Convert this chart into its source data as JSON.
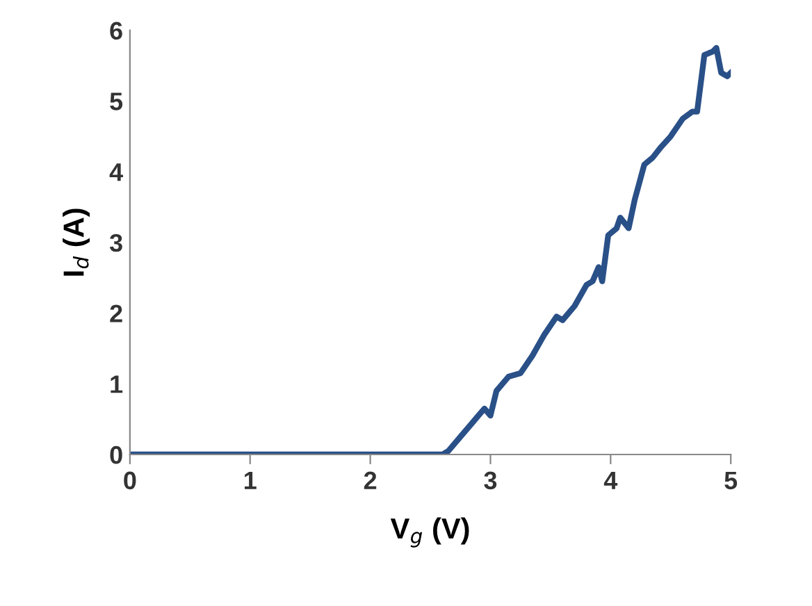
{
  "chart_data": {
    "type": "line",
    "xlabel": "V$_{g}$ (V)",
    "ylabel": "I$_{d}$ (A)",
    "xlim": [
      0,
      5
    ],
    "xticks": [
      0,
      1,
      2,
      3,
      4,
      5
    ],
    "ylim": [
      0,
      6
    ],
    "yticks": [
      0,
      1,
      2,
      3,
      4,
      5,
      6
    ],
    "grid": false,
    "legend": false,
    "marker": "none",
    "line_style": "solid",
    "series": [
      {
        "color": "#2a5088",
        "x": [
          0,
          0.5,
          1,
          1.5,
          2,
          2.5,
          2.6,
          2.65,
          2.75,
          2.85,
          2.9,
          2.95,
          3.0,
          3.05,
          3.15,
          3.25,
          3.35,
          3.45,
          3.55,
          3.6,
          3.7,
          3.8,
          3.85,
          3.9,
          3.93,
          3.98,
          4.05,
          4.08,
          4.15,
          4.2,
          4.28,
          4.35,
          4.42,
          4.5,
          4.6,
          4.68,
          4.72,
          4.78,
          4.85,
          4.88,
          4.92,
          4.97,
          5.0
        ],
        "values": [
          0,
          0,
          0,
          0,
          0,
          0,
          0,
          0.05,
          0.25,
          0.45,
          0.55,
          0.65,
          0.55,
          0.9,
          1.1,
          1.15,
          1.4,
          1.7,
          1.95,
          1.9,
          2.1,
          2.4,
          2.45,
          2.65,
          2.45,
          3.1,
          3.2,
          3.35,
          3.2,
          3.6,
          4.1,
          4.2,
          4.35,
          4.5,
          4.75,
          4.85,
          4.85,
          5.65,
          5.7,
          5.75,
          5.4,
          5.35,
          5.4
        ]
      }
    ]
  }
}
